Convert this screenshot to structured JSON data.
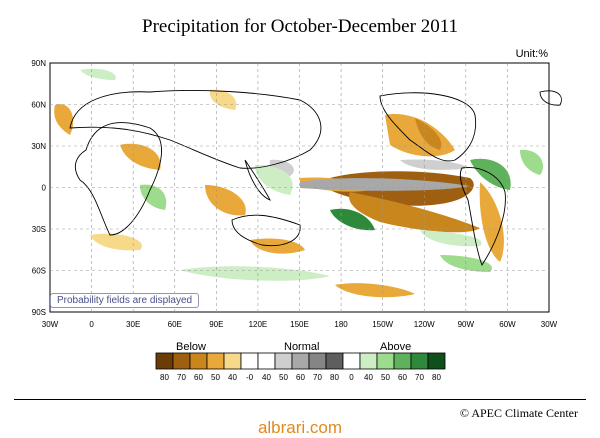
{
  "title": "Precipitation for October-December 2011",
  "unit": "Unit:%",
  "map": {
    "lat_labels": [
      "90N",
      "60N",
      "30N",
      "0",
      "30S",
      "60S",
      "90S"
    ],
    "lon_labels": [
      "30W",
      "0",
      "30E",
      "60E",
      "90E",
      "120E",
      "150E",
      "180",
      "150W",
      "120W",
      "90W",
      "60W",
      "30W"
    ],
    "probability_note": "Probability fields are displayed"
  },
  "legend": {
    "categories": [
      "Below",
      "Normal",
      "Above"
    ],
    "bins": [
      {
        "label": "80",
        "color": "#6b3c06"
      },
      {
        "label": "70",
        "color": "#9e6010"
      },
      {
        "label": "60",
        "color": "#c9861d"
      },
      {
        "label": "50",
        "color": "#e8a93a"
      },
      {
        "label": "40",
        "color": "#f7d98a"
      },
      {
        "label": "-0",
        "color": "#ffffff"
      },
      {
        "label": "40",
        "color": "#ffffff"
      },
      {
        "label": "50",
        "color": "#cfcfcf"
      },
      {
        "label": "60",
        "color": "#a8a8a8"
      },
      {
        "label": "70",
        "color": "#858585"
      },
      {
        "label": "80",
        "color": "#5e5e5e"
      },
      {
        "label": "0",
        "color": "#ffffff"
      },
      {
        "label": "40",
        "color": "#cdeec4"
      },
      {
        "label": "50",
        "color": "#9ddb8d"
      },
      {
        "label": "60",
        "color": "#5fb25b"
      },
      {
        "label": "70",
        "color": "#2e8a3a"
      },
      {
        "label": "80",
        "color": "#0f4f1c"
      }
    ]
  },
  "footer": {
    "credit": "© APEC Climate Center"
  },
  "watermark": "albrari.com"
}
